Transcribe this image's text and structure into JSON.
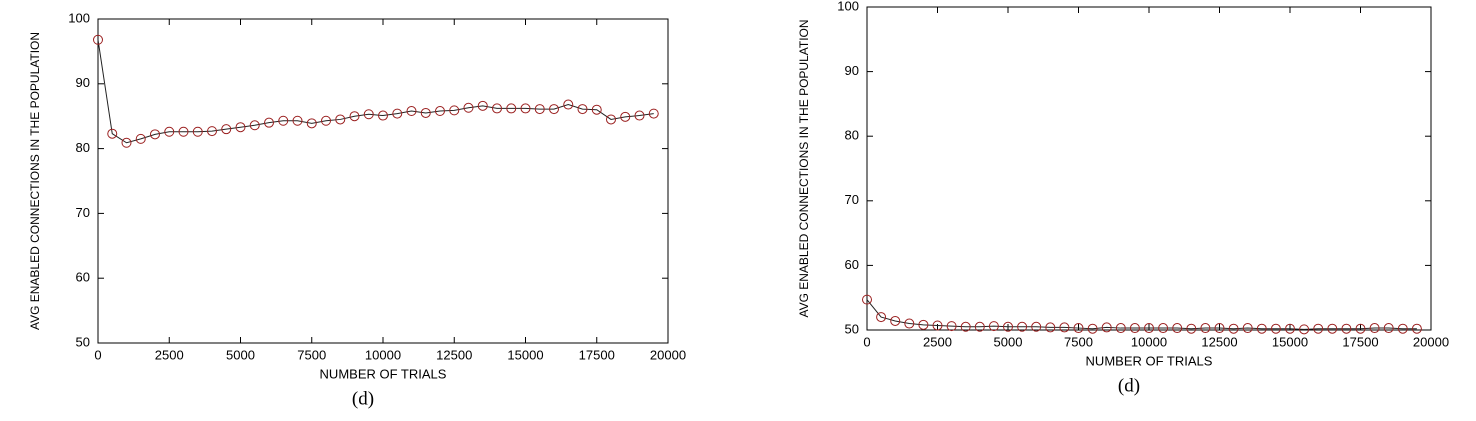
{
  "chart_data": [
    {
      "type": "line",
      "x_label": "NUMBER OF TRIALS",
      "y_label": "AVG ENABLED CONNECTIONS IN THE POPULATION",
      "caption": "(d)",
      "x": [
        0,
        500,
        1000,
        1500,
        2000,
        2500,
        3000,
        3500,
        4000,
        4500,
        5000,
        5500,
        6000,
        6500,
        7000,
        7500,
        8000,
        8500,
        9000,
        9500,
        10000,
        10500,
        11000,
        11500,
        12000,
        12500,
        13000,
        13500,
        14000,
        14500,
        15000,
        15500,
        16000,
        16500,
        17000,
        17500,
        18000,
        18500,
        19000,
        19500
      ],
      "series": [
        {
          "color": "#9b2020",
          "values": [
            96.8,
            82.3,
            80.9,
            81.5,
            82.2,
            82.6,
            82.6,
            82.6,
            82.7,
            83.0,
            83.3,
            83.6,
            84.0,
            84.3,
            84.3,
            83.9,
            84.3,
            84.5,
            85.0,
            85.3,
            85.1,
            85.4,
            85.8,
            85.5,
            85.8,
            85.9,
            86.3,
            86.6,
            86.2,
            86.2,
            86.2,
            86.1,
            86.1,
            86.8,
            86.1,
            86.0,
            84.5,
            84.9,
            85.1,
            85.4
          ]
        }
      ],
      "xlim": [
        0,
        20000
      ],
      "xticks": [
        0,
        2500,
        5000,
        7500,
        10000,
        12500,
        15000,
        17500,
        20000
      ],
      "ylim": [
        50,
        100
      ],
      "yticks": [
        50,
        60,
        70,
        80,
        90,
        100
      ]
    },
    {
      "type": "line",
      "x_label": "NUMBER OF TRIALS",
      "y_label": "AVG ENABLED CONNECTIONS IN THE POPULATION",
      "caption": "(d)",
      "x": [
        0,
        500,
        1000,
        1500,
        2000,
        2500,
        3000,
        3500,
        4000,
        4500,
        5000,
        5500,
        6000,
        6500,
        7000,
        7500,
        8000,
        8500,
        9000,
        9500,
        10000,
        10500,
        11000,
        11500,
        12000,
        12500,
        13000,
        13500,
        14000,
        14500,
        15000,
        15500,
        16000,
        16500,
        17000,
        17500,
        18000,
        18500,
        19000,
        19500
      ],
      "series": [
        {
          "color": "#9b2020",
          "values": [
            54.7,
            52.0,
            51.4,
            51.0,
            50.8,
            50.7,
            50.6,
            50.5,
            50.5,
            50.6,
            50.5,
            50.5,
            50.5,
            50.4,
            50.4,
            50.3,
            50.2,
            50.4,
            50.3,
            50.3,
            50.3,
            50.3,
            50.3,
            50.2,
            50.3,
            50.3,
            50.2,
            50.3,
            50.2,
            50.2,
            50.2,
            50.1,
            50.2,
            50.2,
            50.2,
            50.2,
            50.3,
            50.3,
            50.2,
            50.2
          ]
        }
      ],
      "xlim": [
        0,
        20000
      ],
      "xticks": [
        0,
        2500,
        5000,
        7500,
        10000,
        12500,
        15000,
        17500,
        20000
      ],
      "ylim": [
        50,
        100
      ],
      "yticks": [
        50,
        60,
        70,
        80,
        90,
        100
      ]
    }
  ]
}
